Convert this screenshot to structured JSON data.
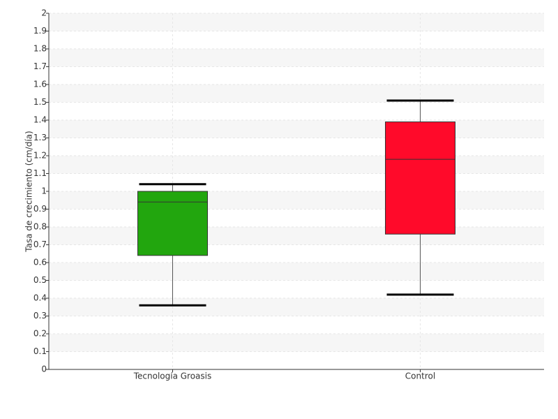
{
  "chart_data": {
    "type": "box",
    "y_label": "Tasa de crecimiento (cm/día)",
    "categories": [
      "Tecnología Groasis",
      "Control"
    ],
    "colors": [
      "#22a60e",
      "#ff0a2a"
    ],
    "min": [
      0.36,
      0.42
    ],
    "q1": [
      0.64,
      0.76
    ],
    "median": [
      0.94,
      1.18
    ],
    "q3": [
      1.0,
      1.39
    ],
    "max": [
      1.04,
      1.51
    ],
    "ylim": [
      0,
      2
    ],
    "yticks": [
      0,
      0.1,
      0.2,
      0.3,
      0.4,
      0.5,
      0.6,
      0.7,
      0.8,
      0.9,
      1,
      1.1,
      1.2,
      1.3,
      1.4,
      1.5,
      1.6,
      1.7,
      1.8,
      1.9,
      2
    ],
    "grid": true
  }
}
